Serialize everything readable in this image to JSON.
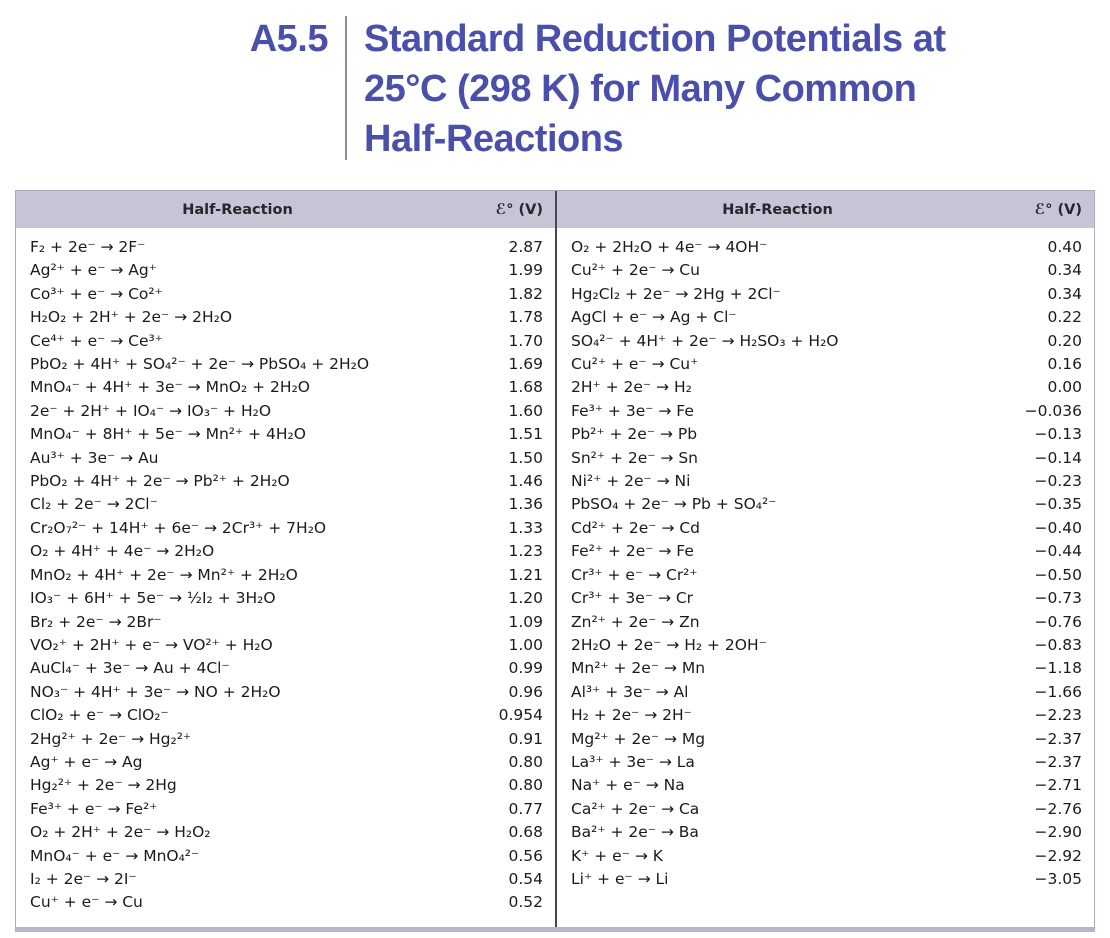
{
  "header": {
    "number": "A5.5",
    "title": "Standard Reduction Potentials at\n25°C (298 K) for Many Common\nHalf-Reactions"
  },
  "colors": {
    "title_text": "#4a4fab",
    "header_band": "#c6c4d5",
    "table_border": "#aba9bd",
    "bottom_border": "#b7b5c7",
    "center_divider": "#47474f",
    "body_text": "#1b1b1d"
  },
  "table": {
    "column_headers": {
      "reaction": "Half-Reaction",
      "potential": "ℰ° (V)"
    },
    "left_rows": [
      {
        "reaction": "F₂ + 2e⁻ → 2F⁻",
        "potential": "2.87"
      },
      {
        "reaction": "Ag²⁺ + e⁻ → Ag⁺",
        "potential": "1.99"
      },
      {
        "reaction": "Co³⁺ + e⁻ → Co²⁺",
        "potential": "1.82"
      },
      {
        "reaction": "H₂O₂ + 2H⁺ + 2e⁻ → 2H₂O",
        "potential": "1.78"
      },
      {
        "reaction": "Ce⁴⁺ + e⁻ → Ce³⁺",
        "potential": "1.70"
      },
      {
        "reaction": "PbO₂ + 4H⁺ + SO₄²⁻ + 2e⁻ → PbSO₄ + 2H₂O",
        "potential": "1.69"
      },
      {
        "reaction": "MnO₄⁻ + 4H⁺ + 3e⁻ → MnO₂ + 2H₂O",
        "potential": "1.68"
      },
      {
        "reaction": "2e⁻ + 2H⁺ + IO₄⁻ → IO₃⁻ + H₂O",
        "potential": "1.60"
      },
      {
        "reaction": "MnO₄⁻ + 8H⁺ + 5e⁻ → Mn²⁺ + 4H₂O",
        "potential": "1.51"
      },
      {
        "reaction": "Au³⁺ + 3e⁻ → Au",
        "potential": "1.50"
      },
      {
        "reaction": "PbO₂ + 4H⁺ + 2e⁻ → Pb²⁺ + 2H₂O",
        "potential": "1.46"
      },
      {
        "reaction": "Cl₂ + 2e⁻ → 2Cl⁻",
        "potential": "1.36"
      },
      {
        "reaction": "Cr₂O₇²⁻ + 14H⁺ + 6e⁻ → 2Cr³⁺ + 7H₂O",
        "potential": "1.33"
      },
      {
        "reaction": "O₂ + 4H⁺ + 4e⁻ → 2H₂O",
        "potential": "1.23"
      },
      {
        "reaction": "MnO₂ + 4H⁺ + 2e⁻ → Mn²⁺ + 2H₂O",
        "potential": "1.21"
      },
      {
        "reaction": "IO₃⁻ + 6H⁺ + 5e⁻ → ½I₂ + 3H₂O",
        "potential": "1.20"
      },
      {
        "reaction": "Br₂ + 2e⁻ → 2Br⁻",
        "potential": "1.09"
      },
      {
        "reaction": "VO₂⁺ + 2H⁺ + e⁻ → VO²⁺ + H₂O",
        "potential": "1.00"
      },
      {
        "reaction": "AuCl₄⁻ + 3e⁻ → Au + 4Cl⁻",
        "potential": "0.99"
      },
      {
        "reaction": "NO₃⁻ + 4H⁺ + 3e⁻ → NO + 2H₂O",
        "potential": "0.96"
      },
      {
        "reaction": "ClO₂ + e⁻ → ClO₂⁻",
        "potential": "0.954"
      },
      {
        "reaction": "2Hg²⁺ + 2e⁻ → Hg₂²⁺",
        "potential": "0.91"
      },
      {
        "reaction": "Ag⁺ + e⁻ → Ag",
        "potential": "0.80"
      },
      {
        "reaction": "Hg₂²⁺ + 2e⁻ → 2Hg",
        "potential": "0.80"
      },
      {
        "reaction": "Fe³⁺ + e⁻ → Fe²⁺",
        "potential": "0.77"
      },
      {
        "reaction": "O₂ + 2H⁺ + 2e⁻ → H₂O₂",
        "potential": "0.68"
      },
      {
        "reaction": "MnO₄⁻ + e⁻ → MnO₄²⁻",
        "potential": "0.56"
      },
      {
        "reaction": "I₂ + 2e⁻ → 2I⁻",
        "potential": "0.54"
      },
      {
        "reaction": "Cu⁺ + e⁻ → Cu",
        "potential": "0.52"
      }
    ],
    "right_rows": [
      {
        "reaction": "O₂ + 2H₂O + 4e⁻ → 4OH⁻",
        "potential": "0.40"
      },
      {
        "reaction": "Cu²⁺ + 2e⁻ → Cu",
        "potential": "0.34"
      },
      {
        "reaction": "Hg₂Cl₂ + 2e⁻ → 2Hg + 2Cl⁻",
        "potential": "0.34"
      },
      {
        "reaction": "AgCl + e⁻ → Ag + Cl⁻",
        "potential": "0.22"
      },
      {
        "reaction": "SO₄²⁻ + 4H⁺ + 2e⁻ → H₂SO₃ + H₂O",
        "potential": "0.20"
      },
      {
        "reaction": "Cu²⁺ + e⁻ → Cu⁺",
        "potential": "0.16"
      },
      {
        "reaction": "2H⁺ + 2e⁻ → H₂",
        "potential": "0.00"
      },
      {
        "reaction": "Fe³⁺ + 3e⁻ → Fe",
        "potential": "−0.036"
      },
      {
        "reaction": "Pb²⁺ + 2e⁻ → Pb",
        "potential": "−0.13"
      },
      {
        "reaction": "Sn²⁺ + 2e⁻ → Sn",
        "potential": "−0.14"
      },
      {
        "reaction": "Ni²⁺ + 2e⁻ → Ni",
        "potential": "−0.23"
      },
      {
        "reaction": "PbSO₄ + 2e⁻ → Pb + SO₄²⁻",
        "potential": "−0.35"
      },
      {
        "reaction": "Cd²⁺ + 2e⁻ → Cd",
        "potential": "−0.40"
      },
      {
        "reaction": "Fe²⁺ + 2e⁻ → Fe",
        "potential": "−0.44"
      },
      {
        "reaction": "Cr³⁺ + e⁻ → Cr²⁺",
        "potential": "−0.50"
      },
      {
        "reaction": "Cr³⁺ + 3e⁻ → Cr",
        "potential": "−0.73"
      },
      {
        "reaction": "Zn²⁺ + 2e⁻ → Zn",
        "potential": "−0.76"
      },
      {
        "reaction": "2H₂O + 2e⁻ → H₂ + 2OH⁻",
        "potential": "−0.83"
      },
      {
        "reaction": "Mn²⁺ + 2e⁻ → Mn",
        "potential": "−1.18"
      },
      {
        "reaction": "Al³⁺ + 3e⁻ → Al",
        "potential": "−1.66"
      },
      {
        "reaction": "H₂ + 2e⁻ → 2H⁻",
        "potential": "−2.23"
      },
      {
        "reaction": "Mg²⁺ + 2e⁻ → Mg",
        "potential": "−2.37"
      },
      {
        "reaction": "La³⁺ + 3e⁻ → La",
        "potential": "−2.37"
      },
      {
        "reaction": "Na⁺ + e⁻ → Na",
        "potential": "−2.71"
      },
      {
        "reaction": "Ca²⁺ + 2e⁻ → Ca",
        "potential": "−2.76"
      },
      {
        "reaction": "Ba²⁺ + 2e⁻ → Ba",
        "potential": "−2.90"
      },
      {
        "reaction": "K⁺ + e⁻ → K",
        "potential": "−2.92"
      },
      {
        "reaction": "Li⁺ + e⁻ → Li",
        "potential": "−3.05"
      }
    ]
  }
}
